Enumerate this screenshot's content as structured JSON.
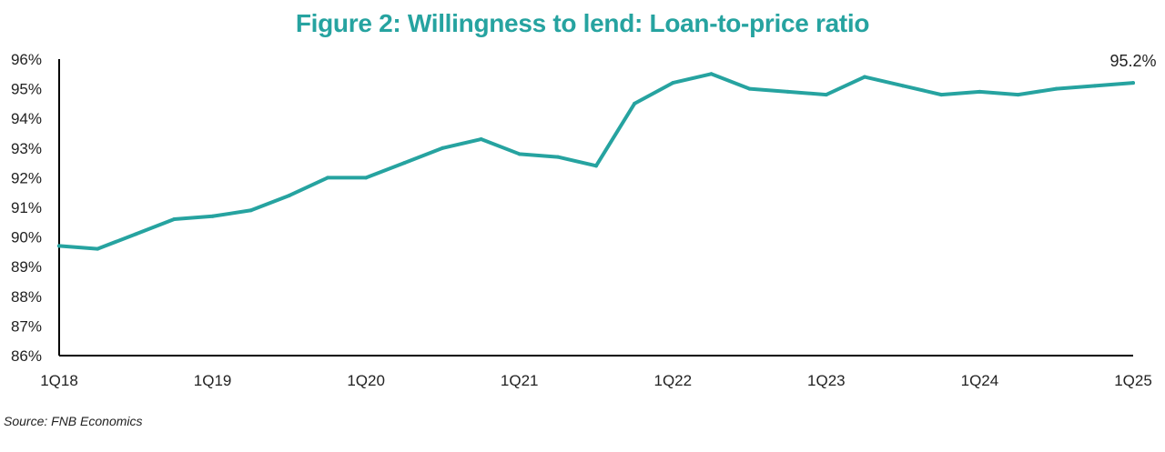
{
  "title": "Figure 2: Willingness to lend: Loan-to-price ratio",
  "source": "Source: FNB Economics",
  "colors": {
    "title": "#26a3a0",
    "line": "#26a3a0",
    "axis": "#000000",
    "text": "#222222"
  },
  "chart_data": {
    "type": "line",
    "title": "Figure 2: Willingness to lend: Loan-to-price ratio",
    "xlabel": "",
    "ylabel": "",
    "ylim": [
      86,
      96
    ],
    "yticks": [
      "86%",
      "87%",
      "88%",
      "89%",
      "90%",
      "91%",
      "92%",
      "93%",
      "94%",
      "95%",
      "96%"
    ],
    "xtick_labels": [
      "1Q18",
      "1Q19",
      "1Q20",
      "1Q21",
      "1Q22",
      "1Q23",
      "1Q24",
      "1Q25"
    ],
    "grid": false,
    "legend": "none",
    "x": [
      "1Q18",
      "2Q18",
      "3Q18",
      "4Q18",
      "1Q19",
      "2Q19",
      "3Q19",
      "4Q19",
      "1Q20",
      "2Q20",
      "3Q20",
      "4Q20",
      "1Q21",
      "2Q21",
      "3Q21",
      "4Q21",
      "1Q22",
      "2Q22",
      "3Q22",
      "4Q22",
      "1Q23",
      "2Q23",
      "3Q23",
      "4Q23",
      "1Q24",
      "2Q24",
      "3Q24",
      "4Q24",
      "1Q25"
    ],
    "series": [
      {
        "values": [
          89.7,
          89.6,
          90.1,
          90.6,
          90.7,
          90.9,
          91.4,
          92.0,
          92.0,
          92.5,
          93.0,
          93.3,
          92.8,
          92.7,
          92.4,
          94.5,
          95.2,
          95.5,
          95.0,
          94.9,
          94.8,
          95.4,
          95.1,
          94.8,
          94.9,
          94.8,
          95.0,
          95.1,
          95.2
        ]
      }
    ],
    "annotations": [
      {
        "x": "1Q25",
        "text": "95.2%"
      }
    ]
  }
}
